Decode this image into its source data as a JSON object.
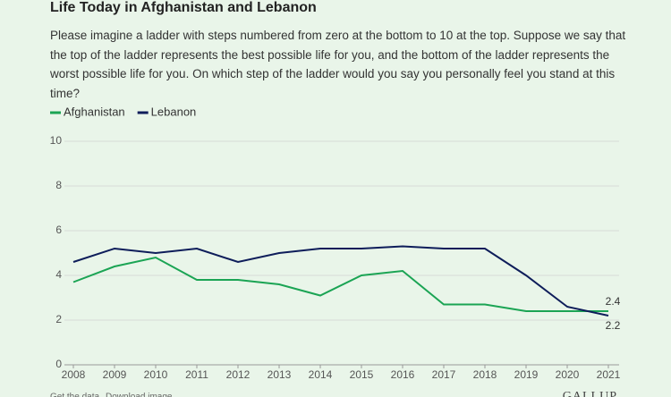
{
  "chart_data": {
    "type": "line",
    "title": "Life Today in Afghanistan and Lebanon",
    "subtitle": "Please imagine a ladder with steps numbered from zero at the bottom to 10 at the top. Suppose we say that the top of the ladder represents the best possible life for you, and the bottom of the ladder represents the worst possible life for you. On which step of the ladder would you say you personally feel you stand at this time?",
    "x": [
      2008,
      2009,
      2010,
      2011,
      2012,
      2013,
      2014,
      2015,
      2016,
      2017,
      2018,
      2019,
      2020,
      2021
    ],
    "xlim": [
      2008,
      2021
    ],
    "xticks": [
      2008,
      2009,
      2010,
      2011,
      2012,
      2013,
      2014,
      2015,
      2016,
      2017,
      2018,
      2019,
      2020,
      2021
    ],
    "ylim": [
      0,
      10
    ],
    "yticks": [
      0,
      2,
      4,
      6,
      8,
      10
    ],
    "grid": true,
    "series": [
      {
        "name": "Afghanistan",
        "color": "#1ba454",
        "values": [
          3.7,
          4.4,
          4.8,
          3.8,
          3.8,
          3.6,
          3.1,
          4.0,
          4.2,
          2.7,
          2.7,
          2.4,
          2.4,
          2.4
        ]
      },
      {
        "name": "Lebanon",
        "color": "#0e1d5a",
        "values": [
          4.6,
          5.2,
          5.0,
          5.2,
          4.6,
          5.0,
          5.2,
          5.2,
          5.3,
          5.2,
          5.2,
          4.0,
          2.6,
          2.2
        ]
      }
    ],
    "footer": [
      "Get the data",
      "Download image"
    ],
    "brand": "GALLUP"
  }
}
